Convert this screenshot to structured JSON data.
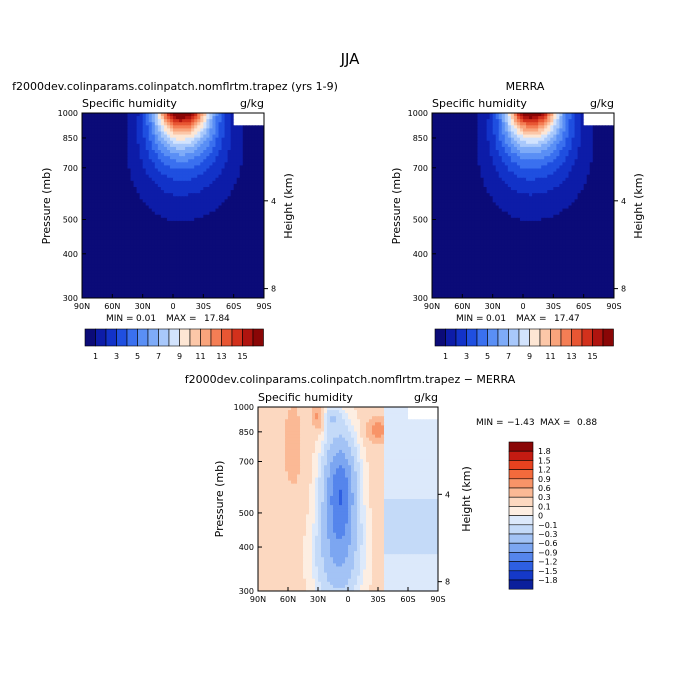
{
  "figure_title": "JJA",
  "chart_data": [
    {
      "type": "heatmap",
      "panel": "model",
      "title": "f2000dev.colinparams.colinpatch.nomflrtm.trapez (yrs 1-9)",
      "subtitle_left": "Specific humidity",
      "subtitle_right": "g/kg",
      "xlabel": "",
      "ylabel": "Pressure (mb)",
      "y2label": "Height (km)",
      "x_ticks": [
        "90N",
        "60N",
        "30N",
        "0",
        "30S",
        "60S",
        "90S"
      ],
      "y_ticks": [
        "300",
        "400",
        "500",
        "700",
        "850",
        "1000"
      ],
      "y2_ticks": [
        "8",
        "4"
      ],
      "xlim": [
        90,
        -90
      ],
      "ylim": [
        1000,
        300
      ],
      "stats": {
        "min_label": "MIN =",
        "min": "0.01",
        "max_label": "MAX =",
        "max": "17.84"
      },
      "peak_value": 17.84,
      "peak_latitude": -8
    },
    {
      "type": "heatmap",
      "panel": "obs",
      "title": "MERRA",
      "subtitle_left": "Specific humidity",
      "subtitle_right": "g/kg",
      "xlabel": "",
      "ylabel": "Pressure (mb)",
      "y2label": "Height (km)",
      "x_ticks": [
        "90N",
        "60N",
        "30N",
        "0",
        "30S",
        "60S",
        "90S"
      ],
      "y_ticks": [
        "300",
        "400",
        "500",
        "700",
        "850",
        "1000"
      ],
      "y2_ticks": [
        "8",
        "4"
      ],
      "xlim": [
        90,
        -90
      ],
      "ylim": [
        1000,
        300
      ],
      "stats": {
        "min_label": "MIN =",
        "min": "0.01",
        "max_label": "MAX =",
        "max": "17.47"
      },
      "peak_value": 17.47,
      "peak_latitude": -8
    },
    {
      "type": "heatmap",
      "panel": "difference",
      "title": "f2000dev.colinparams.colinpatch.nomflrtm.trapez − MERRA",
      "subtitle_left": "Specific humidity",
      "subtitle_right": "g/kg",
      "xlabel": "",
      "ylabel": "Pressure (mb)",
      "y2label": "Height (km)",
      "x_ticks": [
        "90N",
        "60N",
        "30N",
        "0",
        "30S",
        "60S",
        "90S"
      ],
      "y_ticks": [
        "300",
        "400",
        "500",
        "700",
        "850",
        "1000"
      ],
      "y2_ticks": [
        "8",
        "4"
      ],
      "xlim": [
        90,
        -90
      ],
      "ylim": [
        1000,
        300
      ],
      "stats": {
        "min_label": "MIN =",
        "min": "−1.43",
        "max_label": "MAX =",
        "max": "0.88"
      }
    }
  ],
  "colorbar_main": {
    "levels": [
      "1",
      "3",
      "5",
      "7",
      "9",
      "11",
      "13",
      "15"
    ],
    "colors": [
      "#0b0b78",
      "#0d1ca8",
      "#1232c8",
      "#1f4fe0",
      "#3a70ef",
      "#5a8ff5",
      "#7eabf8",
      "#a8c8fb",
      "#d2e3fd",
      "#fde6d4",
      "#fcc7a8",
      "#f9a47c",
      "#f47e55",
      "#e85633",
      "#d2311c",
      "#b0140f",
      "#8a0606"
    ]
  },
  "colorbar_diff": {
    "levels": [
      "1.8",
      "1.5",
      "1.2",
      "0.9",
      "0.6",
      "0.3",
      "0.1",
      "0",
      "−0.1",
      "−0.3",
      "−0.6",
      "−0.9",
      "−1.2",
      "−1.5",
      "−1.8"
    ],
    "colors": [
      "#8a0606",
      "#c41b12",
      "#e8421f",
      "#f46a3c",
      "#f89468",
      "#fbb995",
      "#fcd8c0",
      "#fdeee2",
      "#dce9fb",
      "#c4daf8",
      "#a3c3f5",
      "#7ca6f1",
      "#5585ec",
      "#2e5fe2",
      "#1539c8",
      "#0b1f9c"
    ]
  }
}
